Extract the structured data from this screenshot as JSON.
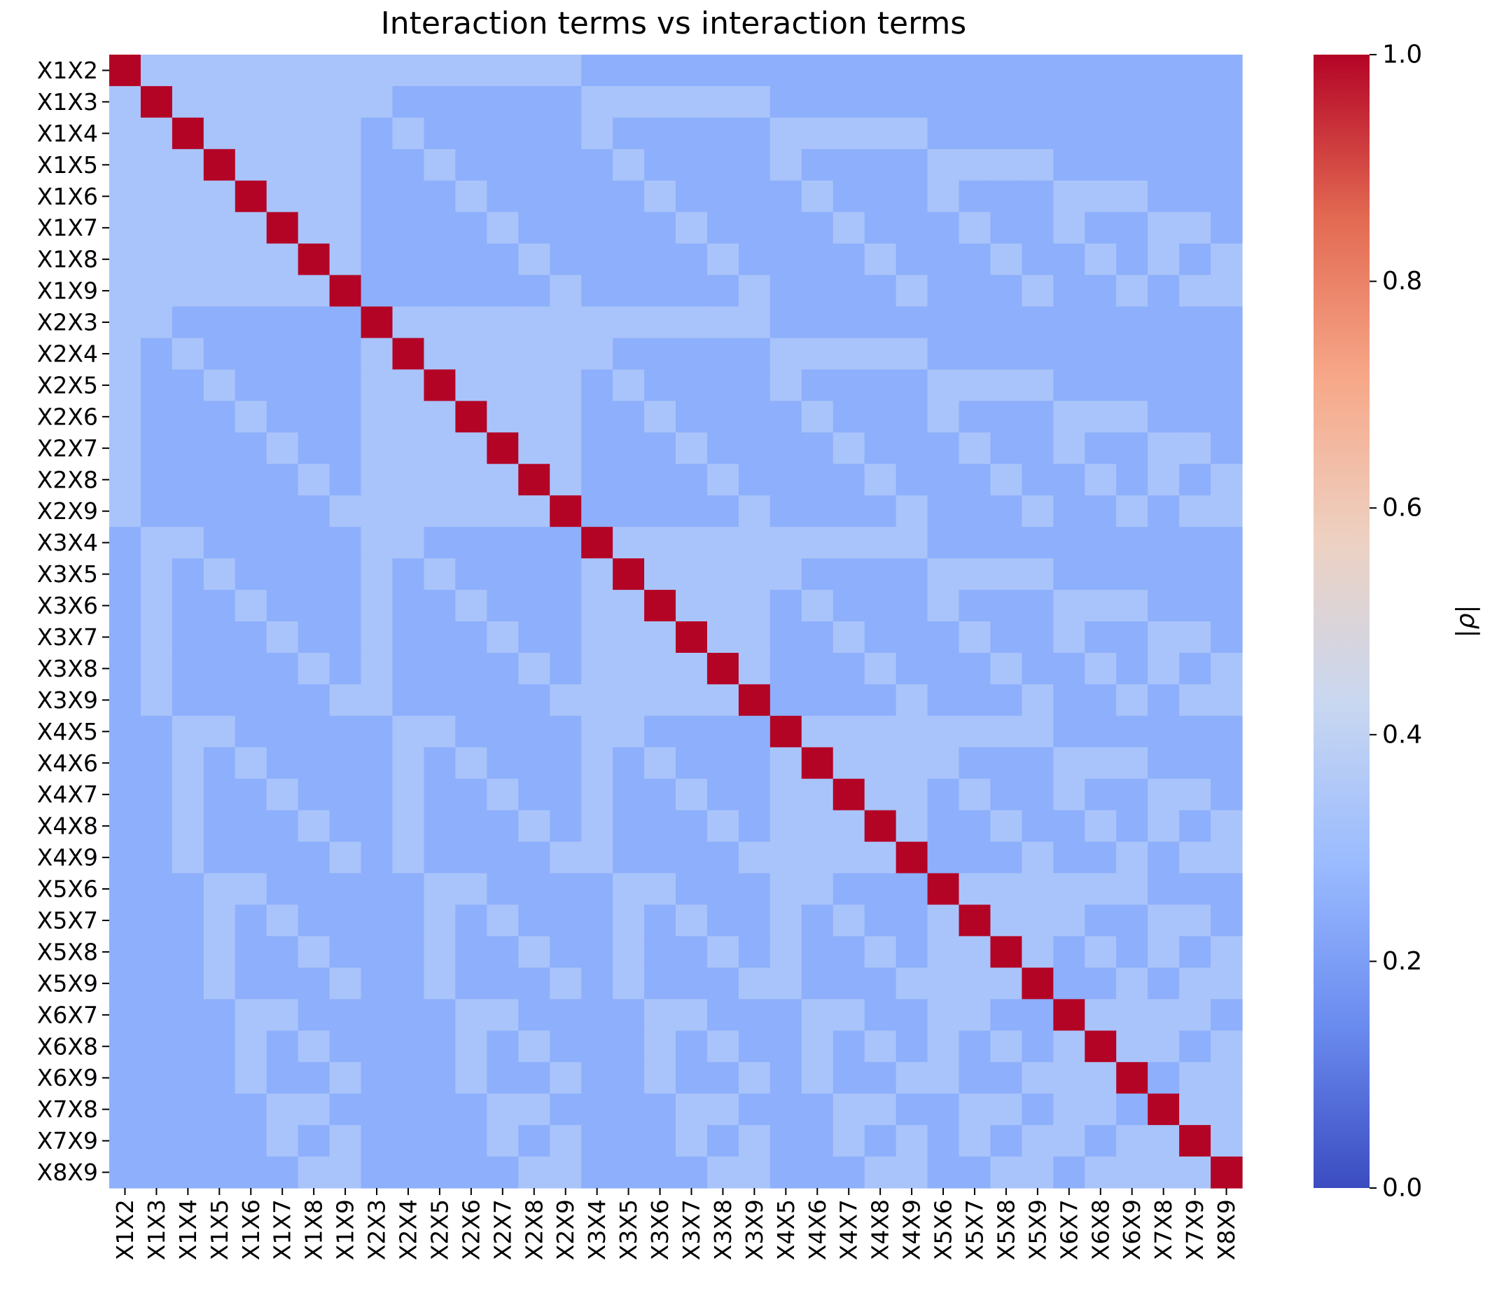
{
  "chart_data": {
    "type": "heatmap",
    "title": "Interaction terms vs interaction terms",
    "labels": [
      "X1X2",
      "X1X3",
      "X1X4",
      "X1X5",
      "X1X6",
      "X1X7",
      "X1X8",
      "X1X9",
      "X2X3",
      "X2X4",
      "X2X5",
      "X2X6",
      "X2X7",
      "X2X8",
      "X2X9",
      "X3X4",
      "X3X5",
      "X3X6",
      "X3X7",
      "X3X8",
      "X3X9",
      "X4X5",
      "X4X6",
      "X4X7",
      "X4X8",
      "X4X9",
      "X5X6",
      "X5X7",
      "X5X8",
      "X5X9",
      "X6X7",
      "X6X8",
      "X6X9",
      "X7X8",
      "X7X9",
      "X8X9"
    ],
    "value_rule": "|rho| = 1.0 on the diagonal; 0.33 when the two interaction terms share exactly one variable; 0.25 otherwise",
    "levels": {
      "diagonal": 1.0,
      "shared_variable": 0.33,
      "unrelated": 0.25
    },
    "colorbar": {
      "label": "|ρ|",
      "min": 0.0,
      "max": 1.0,
      "ticks": [
        "0.0",
        "0.2",
        "0.4",
        "0.6",
        "0.8",
        "1.0"
      ],
      "colormap": "coolwarm",
      "colors": [
        "#3b4cc0",
        "#6a8bef",
        "#9abbff",
        "#c9d7f0",
        "#edd1c2",
        "#f7a889",
        "#e26952",
        "#b40426"
      ]
    }
  }
}
